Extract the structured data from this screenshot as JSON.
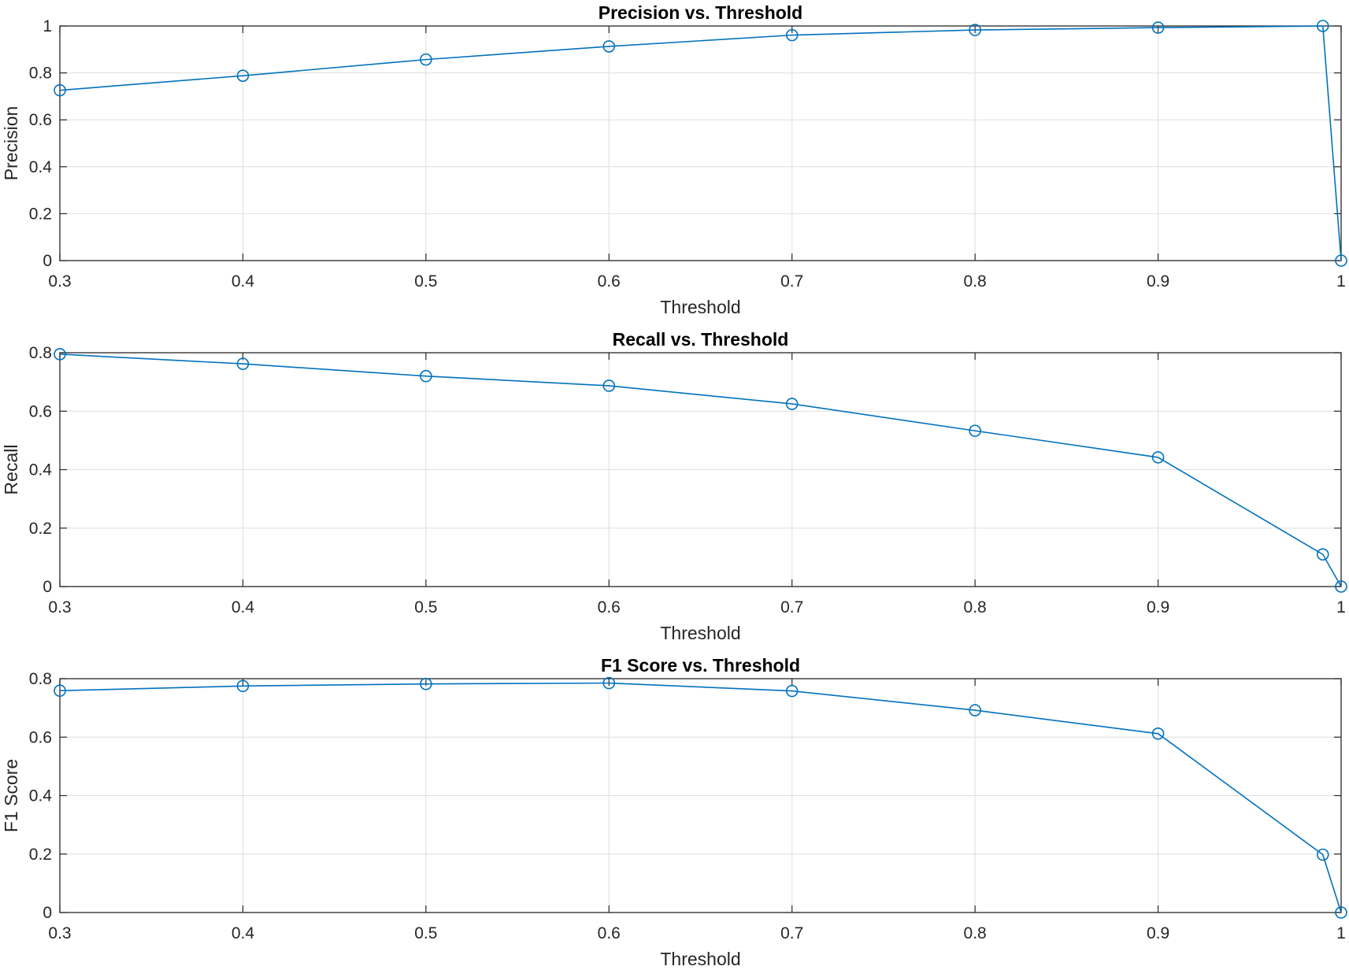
{
  "chart_data": [
    {
      "type": "line",
      "title": "Precision vs. Threshold",
      "xlabel": "Threshold",
      "ylabel": "Precision",
      "xlim": [
        0.3,
        1
      ],
      "ylim": [
        0,
        1
      ],
      "xticks": [
        0.3,
        0.4,
        0.5,
        0.6,
        0.7,
        0.8,
        0.9,
        1
      ],
      "xtick_labels": [
        "0.3",
        "0.4",
        "0.5",
        "0.6",
        "0.7",
        "0.8",
        "0.9",
        "1"
      ],
      "yticks": [
        0,
        0.2,
        0.4,
        0.6,
        0.8,
        1
      ],
      "ytick_labels": [
        "0",
        "0.2",
        "0.4",
        "0.6",
        "0.8",
        "1"
      ],
      "grid": true,
      "marker": "circle",
      "color": "#0072BD",
      "series": [
        {
          "x": [
            0.3,
            0.4,
            0.5,
            0.6,
            0.7,
            0.8,
            0.9,
            0.99,
            1.0
          ],
          "values": [
            0.726,
            0.788,
            0.857,
            0.913,
            0.961,
            0.983,
            0.993,
            1.0,
            0.0
          ]
        }
      ]
    },
    {
      "type": "line",
      "title": "Recall vs. Threshold",
      "xlabel": "Threshold",
      "ylabel": "Recall",
      "xlim": [
        0.3,
        1
      ],
      "ylim": [
        0,
        0.8
      ],
      "xticks": [
        0.3,
        0.4,
        0.5,
        0.6,
        0.7,
        0.8,
        0.9,
        1
      ],
      "xtick_labels": [
        "0.3",
        "0.4",
        "0.5",
        "0.6",
        "0.7",
        "0.8",
        "0.9",
        "1"
      ],
      "yticks": [
        0,
        0.2,
        0.4,
        0.6,
        0.8
      ],
      "ytick_labels": [
        "0",
        "0.2",
        "0.4",
        "0.6",
        "0.8"
      ],
      "grid": true,
      "marker": "circle",
      "color": "#0072BD",
      "series": [
        {
          "x": [
            0.3,
            0.4,
            0.5,
            0.6,
            0.7,
            0.8,
            0.9,
            0.99,
            1.0
          ],
          "values": [
            0.795,
            0.762,
            0.72,
            0.687,
            0.625,
            0.533,
            0.442,
            0.11,
            0.0
          ]
        }
      ]
    },
    {
      "type": "line",
      "title": "F1 Score vs. Threshold",
      "xlabel": "Threshold",
      "ylabel": "F1 Score",
      "xlim": [
        0.3,
        1
      ],
      "ylim": [
        0,
        0.8
      ],
      "xticks": [
        0.3,
        0.4,
        0.5,
        0.6,
        0.7,
        0.8,
        0.9,
        1
      ],
      "xtick_labels": [
        "0.3",
        "0.4",
        "0.5",
        "0.6",
        "0.7",
        "0.8",
        "0.9",
        "1"
      ],
      "yticks": [
        0,
        0.2,
        0.4,
        0.6,
        0.8
      ],
      "ytick_labels": [
        "0",
        "0.2",
        "0.4",
        "0.6",
        "0.8"
      ],
      "grid": true,
      "marker": "circle",
      "color": "#0072BD",
      "series": [
        {
          "x": [
            0.3,
            0.4,
            0.5,
            0.6,
            0.7,
            0.8,
            0.9,
            0.99,
            1.0
          ],
          "values": [
            0.759,
            0.775,
            0.782,
            0.785,
            0.758,
            0.692,
            0.612,
            0.198,
            0.0
          ]
        }
      ]
    }
  ]
}
